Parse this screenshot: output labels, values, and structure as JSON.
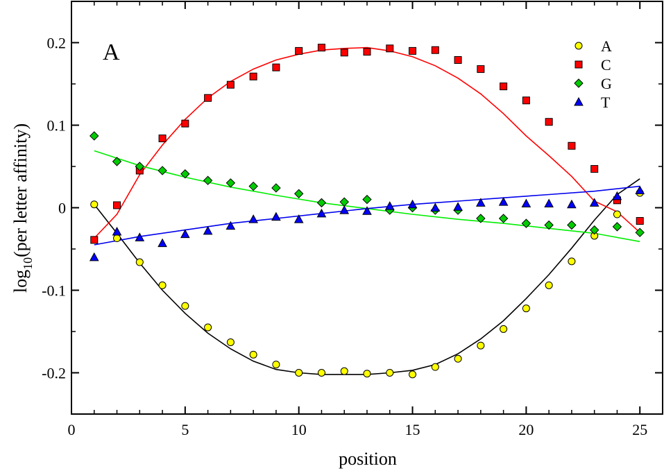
{
  "chart_data": {
    "type": "scatter",
    "panel_label": "A",
    "xlabel": "position",
    "ylabel_parts": {
      "prefix": "log",
      "subscript": "10",
      "suffix": "(per letter affinity)"
    },
    "xlim": [
      0,
      26
    ],
    "ylim": [
      -0.25,
      0.25
    ],
    "x_ticks": [
      0,
      5,
      10,
      15,
      20,
      25
    ],
    "x_tick_labels": [
      "0",
      "5",
      "10",
      "15",
      "20",
      "25"
    ],
    "y_ticks": [
      -0.2,
      -0.1,
      0,
      0.1,
      0.2
    ],
    "y_tick_labels": [
      "-0.2",
      "-0.1",
      "0",
      "0.1",
      "0.2"
    ],
    "legend_position": "top-right",
    "x": [
      1,
      2,
      3,
      4,
      5,
      6,
      7,
      8,
      9,
      10,
      11,
      12,
      13,
      14,
      15,
      16,
      17,
      18,
      19,
      20,
      21,
      22,
      23,
      24,
      25
    ],
    "series": [
      {
        "name": "A",
        "marker": "circle",
        "fill": "#ffff00",
        "line_color": "#000000",
        "values": [
          0.004,
          -0.037,
          -0.066,
          -0.094,
          -0.119,
          -0.145,
          -0.163,
          -0.178,
          -0.19,
          -0.2,
          -0.2,
          -0.198,
          -0.201,
          -0.2,
          -0.202,
          -0.193,
          -0.183,
          -0.167,
          -0.147,
          -0.122,
          -0.094,
          -0.065,
          -0.034,
          -0.008,
          0.018
        ],
        "fit": [
          [
            1,
            0.004
          ],
          [
            2,
            -0.031
          ],
          [
            3,
            -0.067
          ],
          [
            4,
            -0.1
          ],
          [
            5,
            -0.128
          ],
          [
            6,
            -0.152
          ],
          [
            7,
            -0.171
          ],
          [
            8,
            -0.186
          ],
          [
            9,
            -0.196
          ],
          [
            10,
            -0.2
          ],
          [
            11,
            -0.202
          ],
          [
            12,
            -0.202
          ],
          [
            13,
            -0.202
          ],
          [
            14,
            -0.2
          ],
          [
            15,
            -0.197
          ],
          [
            16,
            -0.19
          ],
          [
            17,
            -0.177
          ],
          [
            18,
            -0.159
          ],
          [
            19,
            -0.137
          ],
          [
            20,
            -0.11
          ],
          [
            21,
            -0.081
          ],
          [
            22,
            -0.049
          ],
          [
            23,
            -0.015
          ],
          [
            24,
            0.016
          ],
          [
            25,
            0.035
          ]
        ]
      },
      {
        "name": "C",
        "marker": "square",
        "fill": "#ff0000",
        "line_color": "#ff0000",
        "values": [
          -0.039,
          0.003,
          0.045,
          0.084,
          0.102,
          0.133,
          0.149,
          0.159,
          0.17,
          0.19,
          0.194,
          0.188,
          0.189,
          0.193,
          0.19,
          0.191,
          0.179,
          0.168,
          0.147,
          0.13,
          0.104,
          0.075,
          0.047,
          0.009,
          -0.016
        ],
        "fit": [
          [
            1,
            -0.037
          ],
          [
            2,
            -0.008
          ],
          [
            3,
            0.04
          ],
          [
            4,
            0.076
          ],
          [
            5,
            0.107
          ],
          [
            6,
            0.133
          ],
          [
            7,
            0.153
          ],
          [
            8,
            0.168
          ],
          [
            9,
            0.179
          ],
          [
            10,
            0.186
          ],
          [
            11,
            0.191
          ],
          [
            12,
            0.193
          ],
          [
            13,
            0.194
          ],
          [
            14,
            0.19
          ],
          [
            15,
            0.183
          ],
          [
            16,
            0.172
          ],
          [
            17,
            0.157
          ],
          [
            18,
            0.138
          ],
          [
            19,
            0.114
          ],
          [
            20,
            0.087
          ],
          [
            21,
            0.063
          ],
          [
            22,
            0.038
          ],
          [
            23,
            0.008
          ],
          [
            24,
            -0.005
          ],
          [
            25,
            -0.03
          ]
        ]
      },
      {
        "name": "G",
        "marker": "diamond",
        "fill": "#00cc00",
        "line_color": "#00ee00",
        "values": [
          0.087,
          0.056,
          0.05,
          0.045,
          0.041,
          0.033,
          0.03,
          0.026,
          0.024,
          0.017,
          0.006,
          0.007,
          0.01,
          -0.003,
          0.0,
          -0.003,
          -0.003,
          -0.013,
          -0.013,
          -0.019,
          -0.021,
          -0.021,
          -0.027,
          -0.023,
          -0.03
        ],
        "fit": [
          [
            1,
            0.069
          ],
          [
            3,
            0.051
          ],
          [
            5,
            0.037
          ],
          [
            7,
            0.025
          ],
          [
            9,
            0.015
          ],
          [
            11,
            0.006
          ],
          [
            13,
            -0.001
          ],
          [
            15,
            -0.008
          ],
          [
            17,
            -0.014
          ],
          [
            19,
            -0.019
          ],
          [
            21,
            -0.025
          ],
          [
            23,
            -0.031
          ],
          [
            25,
            -0.041
          ]
        ]
      },
      {
        "name": "T",
        "marker": "triangle",
        "fill": "#0000ff",
        "line_color": "#0000ee",
        "values": [
          -0.06,
          -0.029,
          -0.036,
          -0.043,
          -0.032,
          -0.028,
          -0.022,
          -0.014,
          -0.011,
          -0.014,
          -0.007,
          -0.003,
          -0.004,
          0.002,
          0.004,
          0.0,
          0.001,
          0.006,
          0.007,
          0.005,
          0.005,
          0.004,
          0.006,
          0.014,
          0.021
        ],
        "fit": [
          [
            1,
            -0.045
          ],
          [
            3,
            -0.035
          ],
          [
            5,
            -0.027
          ],
          [
            7,
            -0.019
          ],
          [
            9,
            -0.013
          ],
          [
            11,
            -0.007
          ],
          [
            13,
            -0.001
          ],
          [
            15,
            0.004
          ],
          [
            17,
            0.008
          ],
          [
            19,
            0.012
          ],
          [
            21,
            0.016
          ],
          [
            23,
            0.02
          ],
          [
            25,
            0.026
          ]
        ]
      }
    ]
  }
}
